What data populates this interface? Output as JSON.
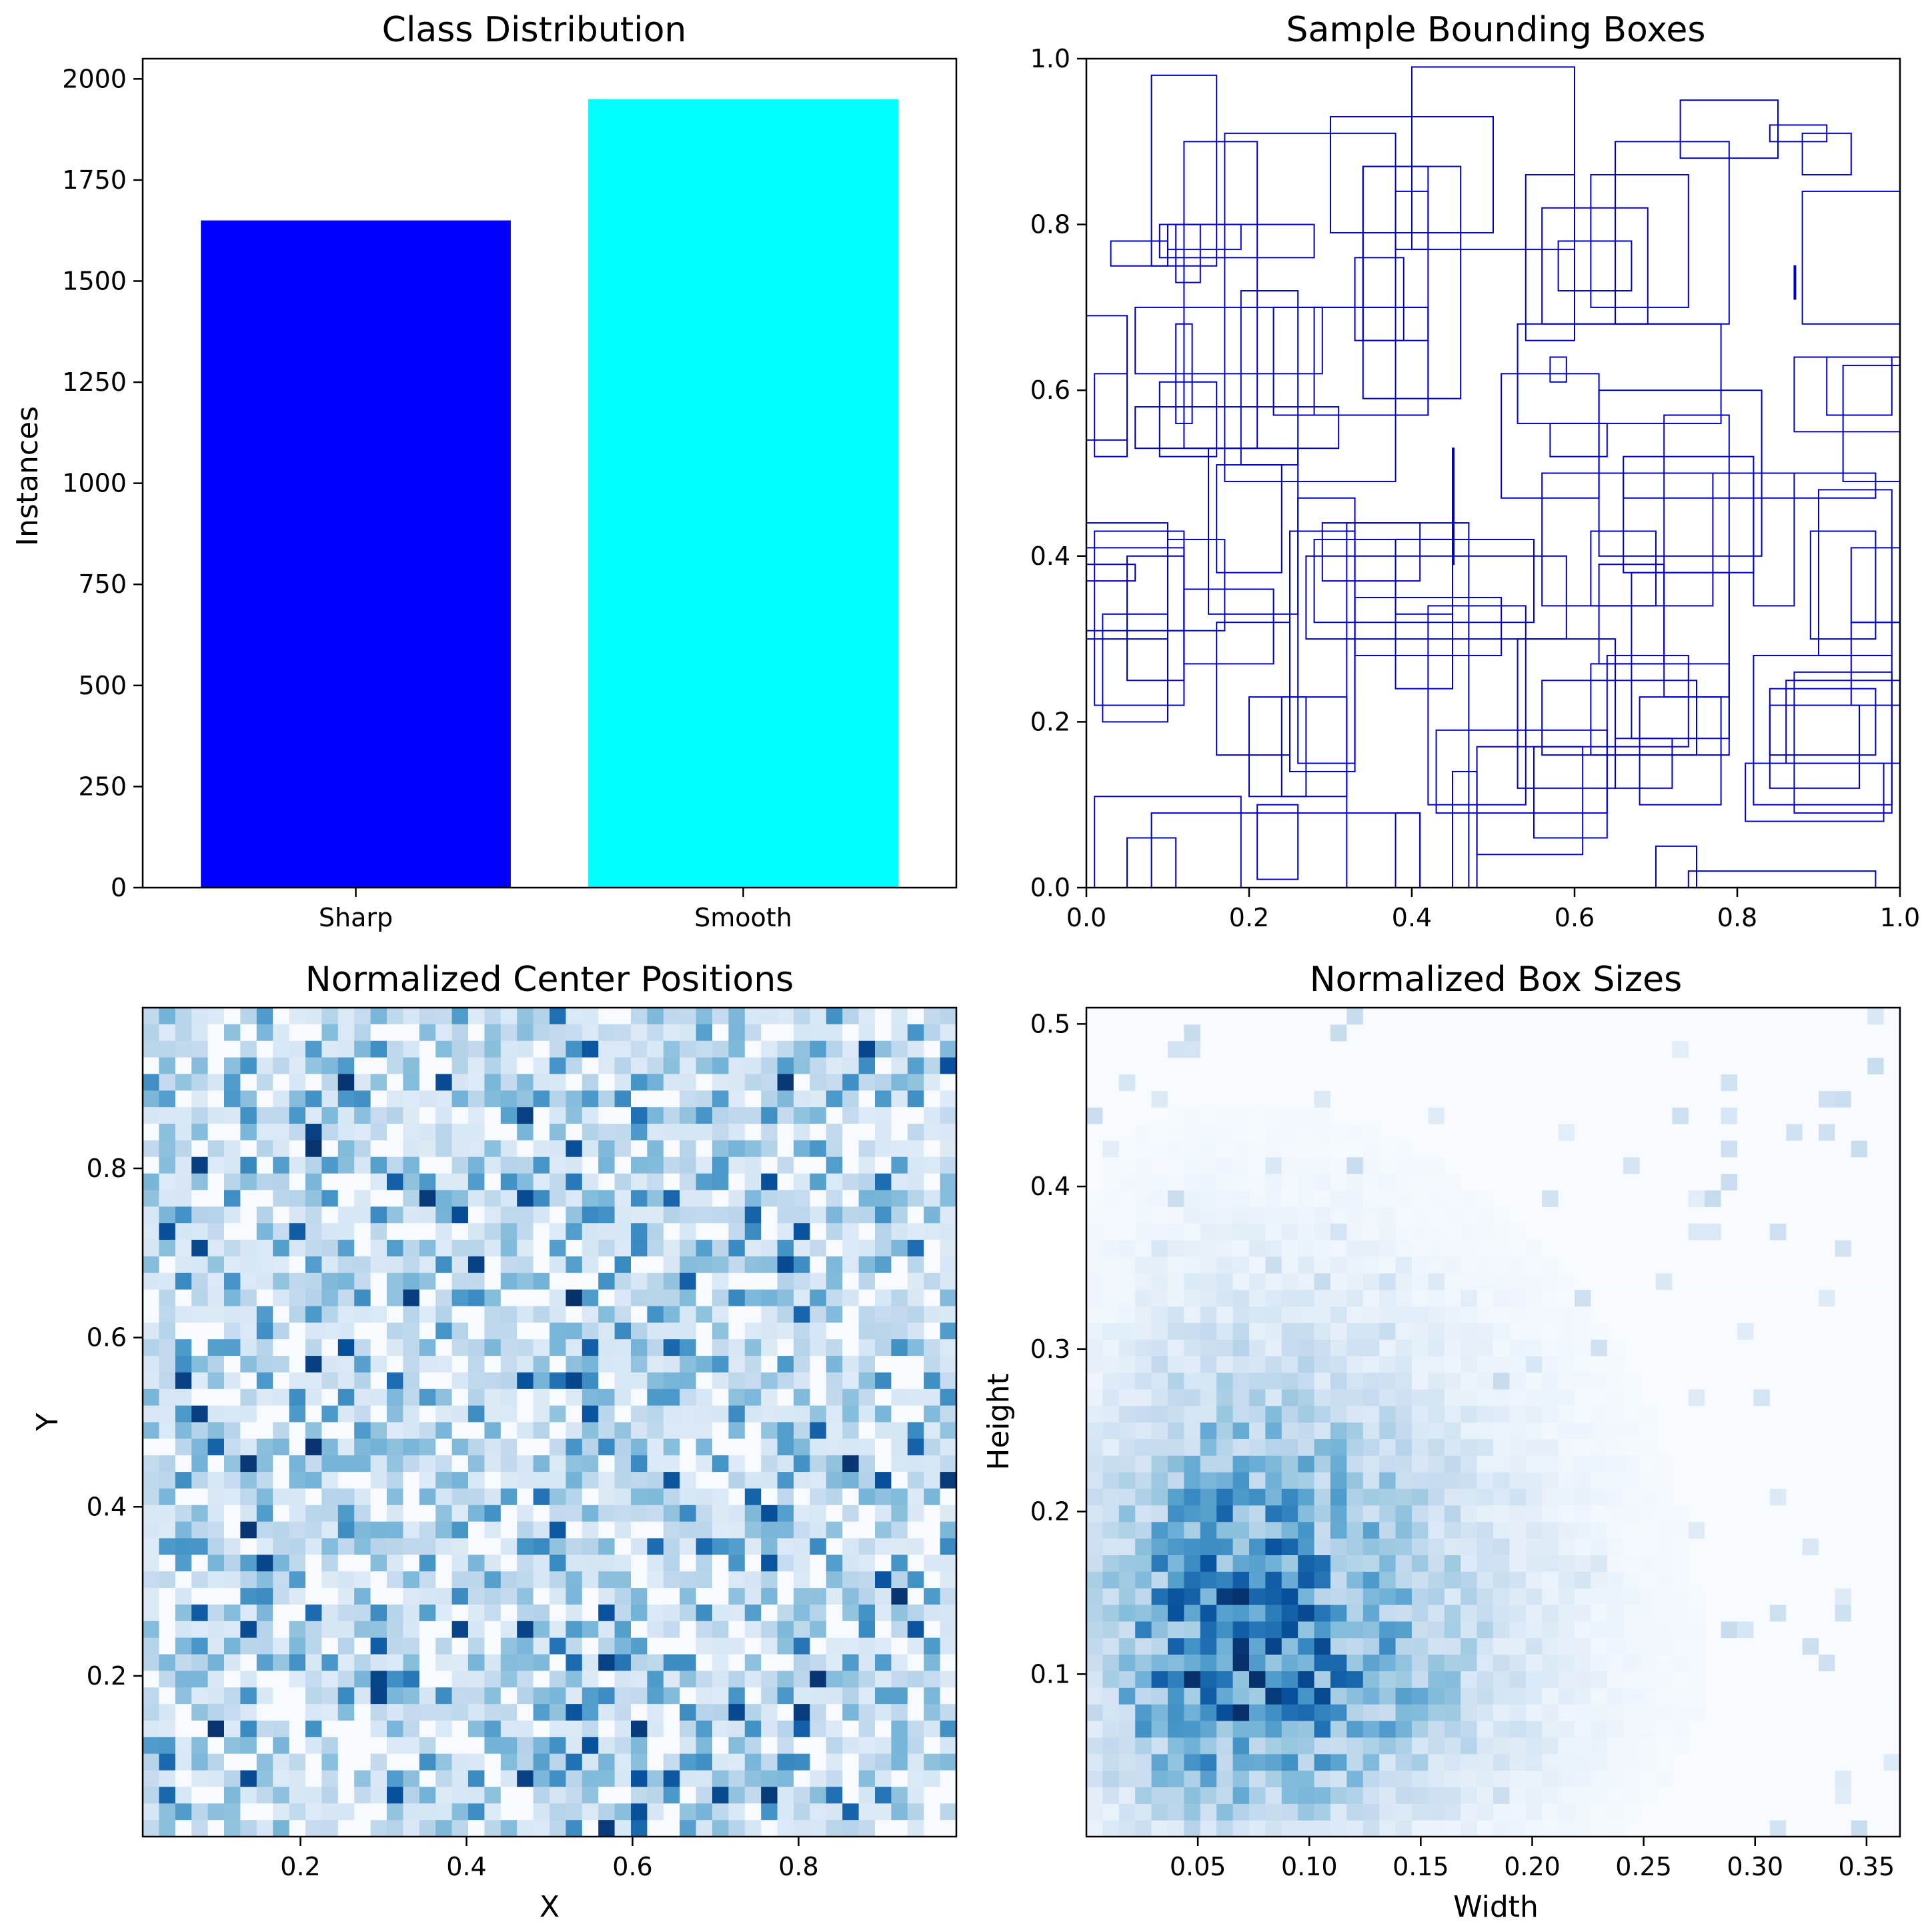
{
  "chart_data": [
    {
      "type": "bar",
      "title": "Class Distribution",
      "xlabel": "",
      "ylabel": "Instances",
      "categories": [
        "Sharp",
        "Smooth"
      ],
      "values": [
        1650,
        1950
      ],
      "colors": [
        "#0000ff",
        "#00ffff"
      ],
      "ylim": [
        0,
        2050
      ],
      "yticks": [
        0,
        250,
        500,
        750,
        1000,
        1250,
        1500,
        1750,
        2000
      ],
      "grid": false
    },
    {
      "type": "rectangles",
      "title": "Sample Bounding Boxes",
      "xlabel": "",
      "ylabel": "",
      "xlim": [
        0,
        1
      ],
      "ylim": [
        0,
        1
      ],
      "xticks": [
        "0.0",
        "0.2",
        "0.4",
        "0.6",
        "0.8",
        "1.0"
      ],
      "yticks": [
        "0.0",
        "0.2",
        "0.4",
        "0.6",
        "0.8",
        "1.0"
      ],
      "edge_color": "#0000cc",
      "boxes_xywh": [
        [
          0.08,
          0.75,
          0.08,
          0.23
        ],
        [
          0.03,
          0.75,
          0.07,
          0.03
        ],
        [
          0.09,
          0.76,
          0.19,
          0.04
        ],
        [
          0.1,
          0.77,
          0.09,
          0.03
        ],
        [
          0.12,
          0.53,
          0.09,
          0.37
        ],
        [
          0.06,
          0.53,
          0.25,
          0.05
        ],
        [
          0.06,
          0.62,
          0.23,
          0.08
        ],
        [
          0.0,
          0.54,
          0.05,
          0.15
        ],
        [
          0.01,
          0.52,
          0.04,
          0.1
        ],
        [
          0.09,
          0.52,
          0.07,
          0.09
        ],
        [
          0.11,
          0.56,
          0.02,
          0.12
        ],
        [
          0.17,
          0.49,
          0.21,
          0.42
        ],
        [
          0.19,
          0.51,
          0.07,
          0.21
        ],
        [
          0.23,
          0.57,
          0.19,
          0.13
        ],
        [
          0.28,
          0.57,
          0.14,
          0.13
        ],
        [
          0.34,
          0.59,
          0.12,
          0.28
        ],
        [
          0.38,
          0.77,
          0.04,
          0.07
        ],
        [
          0.33,
          0.66,
          0.06,
          0.1
        ],
        [
          0.34,
          0.66,
          0.08,
          0.21
        ],
        [
          0.4,
          0.77,
          0.2,
          0.22
        ],
        [
          0.3,
          0.79,
          0.2,
          0.14
        ],
        [
          0.54,
          0.66,
          0.06,
          0.2
        ],
        [
          0.56,
          0.68,
          0.13,
          0.14
        ],
        [
          0.58,
          0.72,
          0.09,
          0.06
        ],
        [
          0.62,
          0.7,
          0.12,
          0.16
        ],
        [
          0.65,
          0.68,
          0.14,
          0.22
        ],
        [
          0.73,
          0.88,
          0.12,
          0.07
        ],
        [
          0.84,
          0.9,
          0.07,
          0.02
        ],
        [
          0.88,
          0.68,
          0.12,
          0.16
        ],
        [
          0.87,
          0.55,
          0.13,
          0.09
        ],
        [
          0.91,
          0.57,
          0.08,
          0.07
        ],
        [
          0.93,
          0.49,
          0.07,
          0.14
        ],
        [
          0.57,
          0.61,
          0.02,
          0.03
        ],
        [
          0.57,
          0.52,
          0.07,
          0.04
        ],
        [
          0.51,
          0.47,
          0.12,
          0.15
        ],
        [
          0.53,
          0.56,
          0.25,
          0.12
        ],
        [
          0.63,
          0.4,
          0.2,
          0.2
        ],
        [
          0.66,
          0.47,
          0.31,
          0.03
        ],
        [
          0.66,
          0.38,
          0.16,
          0.14
        ],
        [
          0.56,
          0.34,
          0.21,
          0.16
        ],
        [
          0.62,
          0.34,
          0.08,
          0.09
        ],
        [
          0.63,
          0.27,
          0.08,
          0.12
        ],
        [
          0.71,
          0.23,
          0.08,
          0.34
        ],
        [
          0.82,
          0.34,
          0.05,
          0.16
        ],
        [
          0.89,
          0.3,
          0.08,
          0.13
        ],
        [
          0.9,
          0.28,
          0.09,
          0.2
        ],
        [
          0.94,
          0.32,
          0.06,
          0.09
        ],
        [
          0.82,
          0.1,
          0.17,
          0.18
        ],
        [
          0.84,
          0.16,
          0.13,
          0.08
        ],
        [
          0.87,
          0.09,
          0.12,
          0.17
        ],
        [
          0.84,
          0.12,
          0.11,
          0.1
        ],
        [
          0.81,
          0.08,
          0.17,
          0.07
        ],
        [
          0.86,
          0.15,
          0.14,
          0.1
        ],
        [
          0.94,
          0.22,
          0.06,
          0.1
        ],
        [
          0.53,
          0.12,
          0.12,
          0.18
        ],
        [
          0.55,
          0.06,
          0.09,
          0.11
        ],
        [
          0.62,
          0.16,
          0.17,
          0.11
        ],
        [
          0.64,
          0.17,
          0.1,
          0.11
        ],
        [
          0.56,
          0.16,
          0.19,
          0.09
        ],
        [
          0.65,
          0.12,
          0.07,
          0.06
        ],
        [
          0.67,
          0.18,
          0.12,
          0.2
        ],
        [
          0.68,
          0.1,
          0.1,
          0.13
        ],
        [
          0.7,
          0.0,
          0.05,
          0.05
        ],
        [
          0.74,
          0.0,
          0.23,
          0.02
        ],
        [
          0.42,
          0.1,
          0.12,
          0.24
        ],
        [
          0.43,
          0.09,
          0.21,
          0.1
        ],
        [
          0.45,
          0.0,
          0.03,
          0.14
        ],
        [
          0.48,
          0.04,
          0.13,
          0.13
        ],
        [
          0.32,
          0.0,
          0.15,
          0.44
        ],
        [
          0.27,
          0.3,
          0.32,
          0.1
        ],
        [
          0.28,
          0.32,
          0.27,
          0.1
        ],
        [
          0.38,
          0.33,
          0.07,
          0.09
        ],
        [
          0.38,
          0.24,
          0.07,
          0.18
        ],
        [
          0.33,
          0.28,
          0.18,
          0.07
        ],
        [
          0.29,
          0.37,
          0.12,
          0.07
        ],
        [
          0.38,
          0.0,
          0.03,
          0.09
        ],
        [
          0.16,
          0.38,
          0.08,
          0.13
        ],
        [
          0.15,
          0.33,
          0.11,
          0.2
        ],
        [
          0.12,
          0.27,
          0.11,
          0.09
        ],
        [
          0.1,
          0.31,
          0.07,
          0.11
        ],
        [
          0.01,
          0.22,
          0.11,
          0.21
        ],
        [
          0.0,
          0.3,
          0.1,
          0.14
        ],
        [
          0.05,
          0.25,
          0.07,
          0.15
        ],
        [
          0.02,
          0.2,
          0.08,
          0.13
        ],
        [
          0.0,
          0.31,
          0.12,
          0.1
        ],
        [
          0.0,
          0.37,
          0.06,
          0.02
        ],
        [
          0.16,
          0.16,
          0.09,
          0.16
        ],
        [
          0.2,
          0.11,
          0.07,
          0.12
        ],
        [
          0.01,
          0.0,
          0.18,
          0.11
        ],
        [
          0.05,
          0.0,
          0.06,
          0.06
        ],
        [
          0.21,
          0.01,
          0.05,
          0.09
        ],
        [
          0.24,
          0.11,
          0.08,
          0.12
        ],
        [
          0.25,
          0.14,
          0.08,
          0.29
        ],
        [
          0.26,
          0.15,
          0.07,
          0.32
        ],
        [
          0.08,
          0.0,
          0.33,
          0.09
        ],
        [
          0.11,
          0.73,
          0.03,
          0.07
        ],
        [
          0.45,
          0.39,
          0.0,
          0.14
        ],
        [
          0.87,
          0.71,
          0.0,
          0.04
        ],
        [
          0.88,
          0.86,
          0.06,
          0.05
        ]
      ]
    },
    {
      "type": "heatmap",
      "title": "Normalized Center Positions",
      "xlabel": "X",
      "ylabel": "Y",
      "xlim": [
        0.01,
        0.99
      ],
      "ylim": [
        0.01,
        0.99
      ],
      "xticks": [
        "0.2",
        "0.4",
        "0.6",
        "0.8"
      ],
      "yticks": [
        "0.2",
        "0.4",
        "0.6",
        "0.8"
      ],
      "bins": [
        50,
        50
      ],
      "colormap": "Blues",
      "pattern": "uniform random counts, mostly light, scattered dark cells"
    },
    {
      "type": "heatmap",
      "title": "Normalized Box Sizes",
      "xlabel": "Width",
      "ylabel": "Height",
      "xlim": [
        0.0,
        0.365
      ],
      "ylim": [
        0.0,
        0.51
      ],
      "xticks": [
        "0.05",
        "0.10",
        "0.15",
        "0.20",
        "0.25",
        "0.30",
        "0.35"
      ],
      "yticks": [
        "0.1",
        "0.2",
        "0.3",
        "0.4",
        "0.5"
      ],
      "bins": [
        50,
        50
      ],
      "colormap": "Blues",
      "peak": {
        "width": 0.062,
        "height": 0.1
      },
      "spread": {
        "width": 0.045,
        "height": 0.07
      }
    }
  ]
}
